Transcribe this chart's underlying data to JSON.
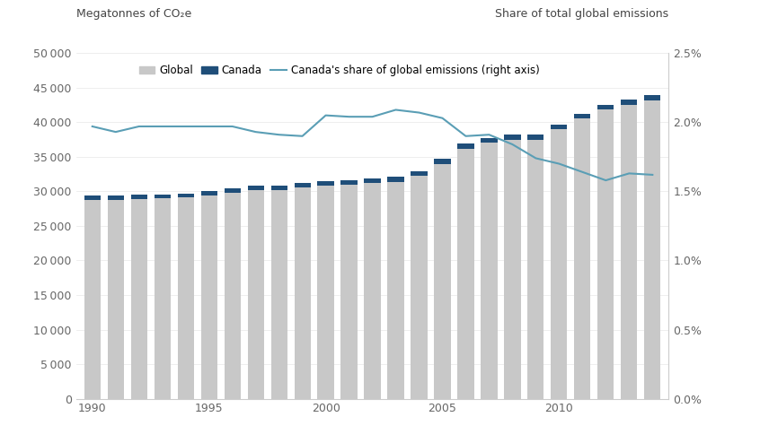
{
  "years": [
    1990,
    1991,
    1992,
    1993,
    1994,
    1995,
    1996,
    1997,
    1998,
    1999,
    2000,
    2001,
    2002,
    2003,
    2004,
    2005,
    2006,
    2007,
    2008,
    2009,
    2010,
    2011,
    2012,
    2013,
    2014
  ],
  "global_emissions": [
    28800,
    28800,
    28900,
    29000,
    29100,
    29400,
    29800,
    30200,
    30200,
    30600,
    30800,
    30900,
    31200,
    31400,
    32200,
    34000,
    36200,
    37000,
    37500,
    37500,
    39000,
    40500,
    41800,
    42500,
    43200
  ],
  "canada_emissions": [
    590,
    590,
    595,
    595,
    597,
    605,
    610,
    610,
    605,
    607,
    722,
    710,
    715,
    740,
    742,
    732,
    720,
    748,
    730,
    690,
    702,
    702,
    698,
    726,
    732
  ],
  "canada_share": [
    1.97,
    1.93,
    1.97,
    1.97,
    1.97,
    1.97,
    1.97,
    1.93,
    1.91,
    1.9,
    2.05,
    2.04,
    2.04,
    2.09,
    2.07,
    2.03,
    1.9,
    1.91,
    1.84,
    1.74,
    1.7,
    1.64,
    1.58,
    1.63,
    1.62
  ],
  "global_color": "#c8c8c8",
  "canada_color": "#1f4e79",
  "line_color": "#5a9eb5",
  "background_color": "#ffffff",
  "ylim_left": [
    0,
    50000
  ],
  "ylim_right": [
    0.0,
    2.5
  ],
  "yticks_left": [
    0,
    5000,
    10000,
    15000,
    20000,
    25000,
    30000,
    35000,
    40000,
    45000,
    50000
  ],
  "yticks_right": [
    0.0,
    0.5,
    1.0,
    1.5,
    2.0,
    2.5
  ],
  "ytick_labels_right": [
    "0.0%",
    "0.5%",
    "1.0%",
    "1.5%",
    "2.0%",
    "2.5%"
  ],
  "ylabel_left": "Megatonnes of CO₂e",
  "ylabel_right": "Share of total global emissions",
  "legend_labels": [
    "Global",
    "Canada",
    "Canada's share of global emissions (right axis)"
  ],
  "bar_width": 0.7,
  "xlim": [
    1989.3,
    2014.7
  ],
  "xticks": [
    1990,
    1995,
    2000,
    2005,
    2010
  ]
}
